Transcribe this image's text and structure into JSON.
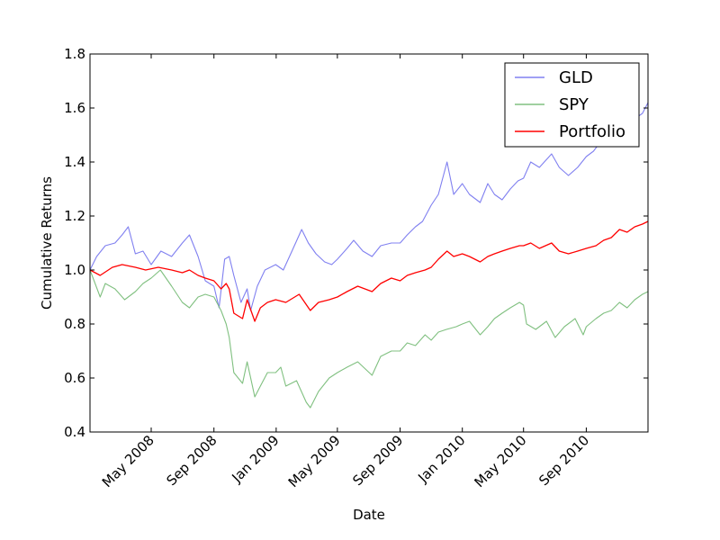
{
  "chart_data": {
    "type": "line",
    "title": "",
    "xlabel": "Date",
    "ylabel": "Cumulative Returns",
    "x_range": [
      "2008-01-02",
      "2010-12-31"
    ],
    "ylim": [
      0.4,
      1.8
    ],
    "y_ticks": [
      "0.4",
      "0.6",
      "0.8",
      "1.0",
      "1.2",
      "1.4",
      "1.6",
      "1.8"
    ],
    "x_ticks": [
      {
        "date": "2008-05-01",
        "label": "May 2008"
      },
      {
        "date": "2008-09-01",
        "label": "Sep 2008"
      },
      {
        "date": "2009-01-01",
        "label": "Jan 2009"
      },
      {
        "date": "2009-05-01",
        "label": "May 2009"
      },
      {
        "date": "2009-09-01",
        "label": "Sep 2009"
      },
      {
        "date": "2010-01-01",
        "label": "Jan 2010"
      },
      {
        "date": "2010-05-01",
        "label": "May 2010"
      },
      {
        "date": "2010-09-01",
        "label": "Sep 2010"
      }
    ],
    "grid": false,
    "legend_position": "top-right",
    "series": [
      {
        "name": "GLD",
        "color": "#8080f0",
        "points": [
          [
            "2008-01-02",
            1.0
          ],
          [
            "2008-01-15",
            1.05
          ],
          [
            "2008-02-01",
            1.09
          ],
          [
            "2008-02-20",
            1.1
          ],
          [
            "2008-03-05",
            1.13
          ],
          [
            "2008-03-17",
            1.16
          ],
          [
            "2008-03-31",
            1.06
          ],
          [
            "2008-04-15",
            1.07
          ],
          [
            "2008-05-01",
            1.02
          ],
          [
            "2008-05-20",
            1.07
          ],
          [
            "2008-06-10",
            1.05
          ],
          [
            "2008-07-01",
            1.1
          ],
          [
            "2008-07-15",
            1.13
          ],
          [
            "2008-08-01",
            1.05
          ],
          [
            "2008-08-15",
            0.96
          ],
          [
            "2008-09-01",
            0.94
          ],
          [
            "2008-09-11",
            0.86
          ],
          [
            "2008-09-22",
            1.04
          ],
          [
            "2008-10-01",
            1.05
          ],
          [
            "2008-10-10",
            0.98
          ],
          [
            "2008-10-24",
            0.88
          ],
          [
            "2008-11-05",
            0.93
          ],
          [
            "2008-11-12",
            0.85
          ],
          [
            "2008-11-25",
            0.94
          ],
          [
            "2008-12-10",
            1.0
          ],
          [
            "2008-12-31",
            1.02
          ],
          [
            "2009-01-15",
            1.0
          ],
          [
            "2009-02-01",
            1.07
          ],
          [
            "2009-02-20",
            1.15
          ],
          [
            "2009-03-05",
            1.1
          ],
          [
            "2009-03-20",
            1.06
          ],
          [
            "2009-04-06",
            1.03
          ],
          [
            "2009-04-20",
            1.02
          ],
          [
            "2009-05-01",
            1.04
          ],
          [
            "2009-05-20",
            1.08
          ],
          [
            "2009-06-02",
            1.11
          ],
          [
            "2009-06-20",
            1.07
          ],
          [
            "2009-07-08",
            1.05
          ],
          [
            "2009-07-25",
            1.09
          ],
          [
            "2009-08-15",
            1.1
          ],
          [
            "2009-09-01",
            1.1
          ],
          [
            "2009-09-15",
            1.13
          ],
          [
            "2009-10-01",
            1.16
          ],
          [
            "2009-10-15",
            1.18
          ],
          [
            "2009-11-01",
            1.24
          ],
          [
            "2009-11-15",
            1.28
          ],
          [
            "2009-12-02",
            1.4
          ],
          [
            "2009-12-15",
            1.28
          ],
          [
            "2010-01-01",
            1.32
          ],
          [
            "2010-01-15",
            1.28
          ],
          [
            "2010-02-05",
            1.25
          ],
          [
            "2010-02-20",
            1.32
          ],
          [
            "2010-03-05",
            1.28
          ],
          [
            "2010-03-20",
            1.26
          ],
          [
            "2010-04-05",
            1.3
          ],
          [
            "2010-04-20",
            1.33
          ],
          [
            "2010-05-01",
            1.34
          ],
          [
            "2010-05-15",
            1.4
          ],
          [
            "2010-06-01",
            1.38
          ],
          [
            "2010-06-25",
            1.43
          ],
          [
            "2010-07-10",
            1.38
          ],
          [
            "2010-07-28",
            1.35
          ],
          [
            "2010-08-15",
            1.38
          ],
          [
            "2010-09-01",
            1.42
          ],
          [
            "2010-09-15",
            1.44
          ],
          [
            "2010-10-01",
            1.48
          ],
          [
            "2010-10-15",
            1.5
          ],
          [
            "2010-11-01",
            1.52
          ],
          [
            "2010-11-09",
            1.56
          ],
          [
            "2010-11-20",
            1.52
          ],
          [
            "2010-12-05",
            1.56
          ],
          [
            "2010-12-20",
            1.58
          ],
          [
            "2010-12-31",
            1.62
          ]
        ]
      },
      {
        "name": "SPY",
        "color": "#80c080",
        "points": [
          [
            "2008-01-02",
            1.0
          ],
          [
            "2008-01-22",
            0.9
          ],
          [
            "2008-02-01",
            0.95
          ],
          [
            "2008-02-20",
            0.93
          ],
          [
            "2008-03-10",
            0.89
          ],
          [
            "2008-03-31",
            0.92
          ],
          [
            "2008-04-15",
            0.95
          ],
          [
            "2008-05-01",
            0.97
          ],
          [
            "2008-05-19",
            1.0
          ],
          [
            "2008-06-10",
            0.94
          ],
          [
            "2008-07-01",
            0.88
          ],
          [
            "2008-07-15",
            0.86
          ],
          [
            "2008-08-01",
            0.9
          ],
          [
            "2008-08-15",
            0.91
          ],
          [
            "2008-09-01",
            0.9
          ],
          [
            "2008-09-15",
            0.85
          ],
          [
            "2008-09-25",
            0.8
          ],
          [
            "2008-10-01",
            0.75
          ],
          [
            "2008-10-10",
            0.62
          ],
          [
            "2008-10-27",
            0.58
          ],
          [
            "2008-11-05",
            0.66
          ],
          [
            "2008-11-20",
            0.53
          ],
          [
            "2008-12-01",
            0.57
          ],
          [
            "2008-12-15",
            0.62
          ],
          [
            "2008-12-31",
            0.62
          ],
          [
            "2009-01-10",
            0.64
          ],
          [
            "2009-01-20",
            0.57
          ],
          [
            "2009-02-10",
            0.59
          ],
          [
            "2009-03-01",
            0.51
          ],
          [
            "2009-03-09",
            0.49
          ],
          [
            "2009-03-25",
            0.55
          ],
          [
            "2009-04-15",
            0.6
          ],
          [
            "2009-05-01",
            0.62
          ],
          [
            "2009-05-20",
            0.64
          ],
          [
            "2009-06-10",
            0.66
          ],
          [
            "2009-07-08",
            0.61
          ],
          [
            "2009-07-25",
            0.68
          ],
          [
            "2009-08-15",
            0.7
          ],
          [
            "2009-09-01",
            0.7
          ],
          [
            "2009-09-15",
            0.73
          ],
          [
            "2009-10-01",
            0.72
          ],
          [
            "2009-10-20",
            0.76
          ],
          [
            "2009-11-01",
            0.74
          ],
          [
            "2009-11-15",
            0.77
          ],
          [
            "2009-12-01",
            0.78
          ],
          [
            "2009-12-20",
            0.79
          ],
          [
            "2010-01-01",
            0.8
          ],
          [
            "2010-01-15",
            0.81
          ],
          [
            "2010-02-05",
            0.76
          ],
          [
            "2010-02-20",
            0.79
          ],
          [
            "2010-03-05",
            0.82
          ],
          [
            "2010-03-20",
            0.84
          ],
          [
            "2010-04-05",
            0.86
          ],
          [
            "2010-04-23",
            0.88
          ],
          [
            "2010-05-01",
            0.87
          ],
          [
            "2010-05-07",
            0.8
          ],
          [
            "2010-05-25",
            0.78
          ],
          [
            "2010-06-15",
            0.81
          ],
          [
            "2010-07-02",
            0.75
          ],
          [
            "2010-07-20",
            0.79
          ],
          [
            "2010-08-10",
            0.82
          ],
          [
            "2010-08-26",
            0.76
          ],
          [
            "2010-09-01",
            0.79
          ],
          [
            "2010-09-20",
            0.82
          ],
          [
            "2010-10-05",
            0.84
          ],
          [
            "2010-10-20",
            0.85
          ],
          [
            "2010-11-05",
            0.88
          ],
          [
            "2010-11-20",
            0.86
          ],
          [
            "2010-12-05",
            0.89
          ],
          [
            "2010-12-20",
            0.91
          ],
          [
            "2010-12-31",
            0.92
          ]
        ]
      },
      {
        "name": "Portfolio",
        "color": "#ff0000",
        "points": [
          [
            "2008-01-02",
            1.0
          ],
          [
            "2008-01-22",
            0.98
          ],
          [
            "2008-02-15",
            1.01
          ],
          [
            "2008-03-05",
            1.02
          ],
          [
            "2008-03-31",
            1.01
          ],
          [
            "2008-04-20",
            1.0
          ],
          [
            "2008-05-15",
            1.01
          ],
          [
            "2008-06-10",
            1.0
          ],
          [
            "2008-07-01",
            0.99
          ],
          [
            "2008-07-15",
            1.0
          ],
          [
            "2008-08-01",
            0.98
          ],
          [
            "2008-08-15",
            0.97
          ],
          [
            "2008-09-01",
            0.96
          ],
          [
            "2008-09-15",
            0.93
          ],
          [
            "2008-09-25",
            0.95
          ],
          [
            "2008-10-01",
            0.93
          ],
          [
            "2008-10-10",
            0.84
          ],
          [
            "2008-10-27",
            0.82
          ],
          [
            "2008-11-05",
            0.89
          ],
          [
            "2008-11-20",
            0.81
          ],
          [
            "2008-12-01",
            0.86
          ],
          [
            "2008-12-15",
            0.88
          ],
          [
            "2008-12-31",
            0.89
          ],
          [
            "2009-01-20",
            0.88
          ],
          [
            "2009-02-15",
            0.91
          ],
          [
            "2009-03-09",
            0.85
          ],
          [
            "2009-03-25",
            0.88
          ],
          [
            "2009-04-15",
            0.89
          ],
          [
            "2009-05-01",
            0.9
          ],
          [
            "2009-05-20",
            0.92
          ],
          [
            "2009-06-10",
            0.94
          ],
          [
            "2009-07-08",
            0.92
          ],
          [
            "2009-07-25",
            0.95
          ],
          [
            "2009-08-15",
            0.97
          ],
          [
            "2009-09-01",
            0.96
          ],
          [
            "2009-09-15",
            0.98
          ],
          [
            "2009-10-01",
            0.99
          ],
          [
            "2009-10-20",
            1.0
          ],
          [
            "2009-11-01",
            1.01
          ],
          [
            "2009-11-15",
            1.04
          ],
          [
            "2009-12-02",
            1.07
          ],
          [
            "2009-12-15",
            1.05
          ],
          [
            "2010-01-01",
            1.06
          ],
          [
            "2010-01-15",
            1.05
          ],
          [
            "2010-02-05",
            1.03
          ],
          [
            "2010-02-20",
            1.05
          ],
          [
            "2010-03-05",
            1.06
          ],
          [
            "2010-03-20",
            1.07
          ],
          [
            "2010-04-05",
            1.08
          ],
          [
            "2010-04-23",
            1.09
          ],
          [
            "2010-05-01",
            1.09
          ],
          [
            "2010-05-15",
            1.1
          ],
          [
            "2010-06-01",
            1.08
          ],
          [
            "2010-06-25",
            1.1
          ],
          [
            "2010-07-10",
            1.07
          ],
          [
            "2010-07-28",
            1.06
          ],
          [
            "2010-08-15",
            1.07
          ],
          [
            "2010-09-01",
            1.08
          ],
          [
            "2010-09-20",
            1.09
          ],
          [
            "2010-10-05",
            1.11
          ],
          [
            "2010-10-20",
            1.12
          ],
          [
            "2010-11-05",
            1.15
          ],
          [
            "2010-11-20",
            1.14
          ],
          [
            "2010-12-05",
            1.16
          ],
          [
            "2010-12-20",
            1.17
          ],
          [
            "2010-12-31",
            1.18
          ]
        ]
      }
    ]
  }
}
